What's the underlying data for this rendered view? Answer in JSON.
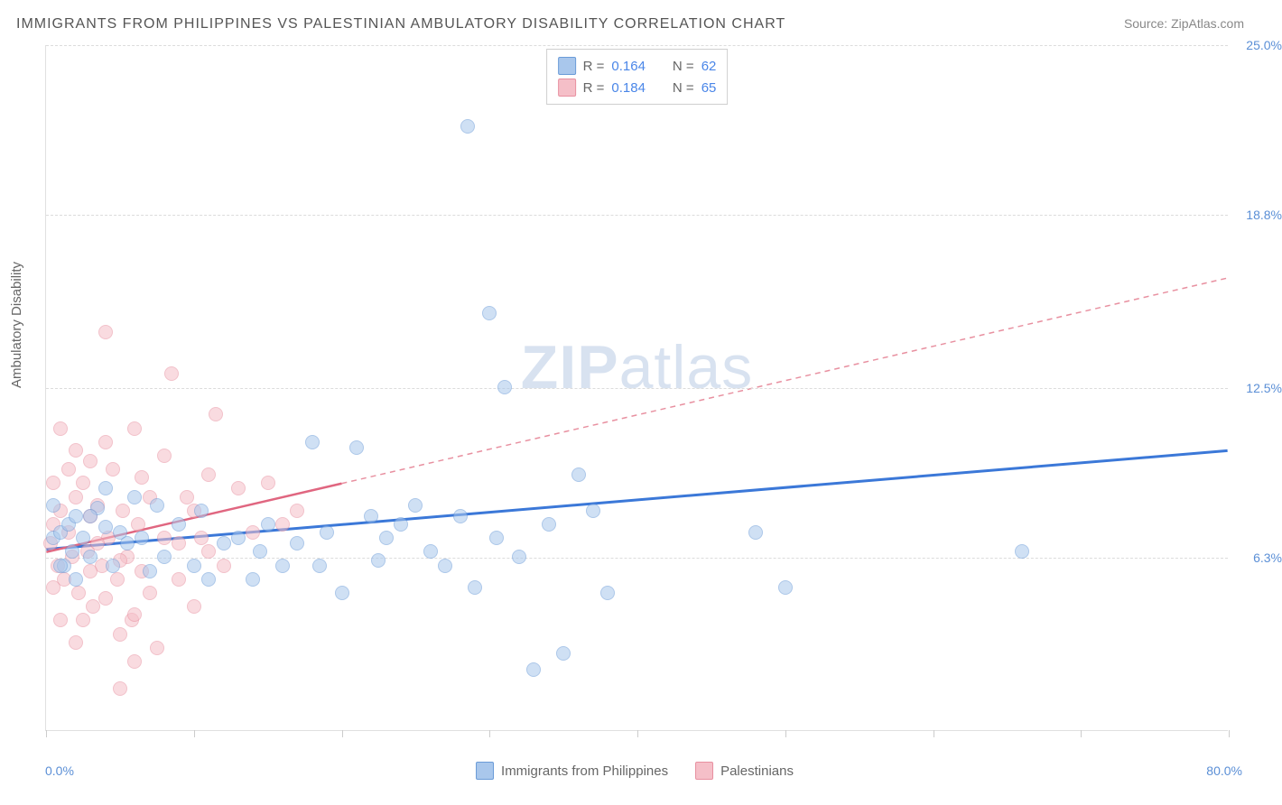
{
  "title": "IMMIGRANTS FROM PHILIPPINES VS PALESTINIAN AMBULATORY DISABILITY CORRELATION CHART",
  "source_prefix": "Source: ",
  "source_name": "ZipAtlas.com",
  "watermark_zip": "ZIP",
  "watermark_rest": "atlas",
  "y_axis_label": "Ambulatory Disability",
  "chart": {
    "type": "scatter",
    "xlim": [
      0,
      80
    ],
    "ylim": [
      0,
      25
    ],
    "x_min_label": "0.0%",
    "x_max_label": "80.0%",
    "y_ticks": [
      {
        "v": 6.3,
        "label": "6.3%"
      },
      {
        "v": 12.5,
        "label": "12.5%"
      },
      {
        "v": 18.8,
        "label": "18.8%"
      },
      {
        "v": 25.0,
        "label": "25.0%"
      }
    ],
    "x_tick_positions": [
      0,
      10,
      20,
      30,
      40,
      50,
      60,
      70,
      80
    ],
    "grid_color": "#dcdcdc",
    "background_color": "#ffffff",
    "axis_color": "#e0e0e0",
    "label_color": "#666666",
    "tick_label_color": "#5b8fd6",
    "marker_radius": 8,
    "marker_opacity": 0.55,
    "title_fontsize": 16,
    "label_fontsize": 15
  },
  "series": [
    {
      "key": "philippines",
      "label": "Immigrants from Philippines",
      "color_fill": "#a9c7ec",
      "color_stroke": "#6a9bd8",
      "r_label": "R = ",
      "r_value": "0.164",
      "n_label": "N = ",
      "n_value": "62",
      "trend": {
        "x1": 0,
        "y1": 6.6,
        "x2": 80,
        "y2": 10.2,
        "color": "#3b78d8",
        "width": 3,
        "dash": "none"
      },
      "trend_dashed": null,
      "points": [
        [
          0.5,
          7.0
        ],
        [
          1.0,
          7.2
        ],
        [
          1.2,
          6.0
        ],
        [
          1.5,
          7.5
        ],
        [
          1.8,
          6.5
        ],
        [
          2.0,
          7.8
        ],
        [
          2.5,
          7.0
        ],
        [
          3.0,
          6.3
        ],
        [
          3.5,
          8.1
        ],
        [
          4.0,
          7.4
        ],
        [
          4.5,
          6.0
        ],
        [
          5.0,
          7.2
        ],
        [
          5.5,
          6.8
        ],
        [
          6.0,
          8.5
        ],
        [
          6.5,
          7.0
        ],
        [
          7.0,
          5.8
        ],
        [
          7.5,
          8.2
        ],
        [
          8.0,
          6.3
        ],
        [
          9.0,
          7.5
        ],
        [
          10.0,
          6.0
        ],
        [
          10.5,
          8.0
        ],
        [
          11.0,
          5.5
        ],
        [
          12.0,
          6.8
        ],
        [
          13.0,
          7.0
        ],
        [
          14.0,
          5.5
        ],
        [
          14.5,
          6.5
        ],
        [
          15.0,
          7.5
        ],
        [
          16.0,
          6.0
        ],
        [
          17.0,
          6.8
        ],
        [
          18.0,
          10.5
        ],
        [
          18.5,
          6.0
        ],
        [
          19.0,
          7.2
        ],
        [
          20.0,
          5.0
        ],
        [
          21.0,
          10.3
        ],
        [
          22.0,
          7.8
        ],
        [
          22.5,
          6.2
        ],
        [
          23.0,
          7.0
        ],
        [
          24.0,
          7.5
        ],
        [
          25.0,
          8.2
        ],
        [
          26.0,
          6.5
        ],
        [
          27.0,
          6.0
        ],
        [
          28.0,
          7.8
        ],
        [
          28.5,
          22.0
        ],
        [
          29.0,
          5.2
        ],
        [
          30.0,
          15.2
        ],
        [
          30.5,
          7.0
        ],
        [
          31.0,
          12.5
        ],
        [
          32.0,
          6.3
        ],
        [
          33.0,
          2.2
        ],
        [
          34.0,
          7.5
        ],
        [
          35.0,
          2.8
        ],
        [
          36.0,
          9.3
        ],
        [
          37.0,
          8.0
        ],
        [
          38.0,
          5.0
        ],
        [
          0.5,
          8.2
        ],
        [
          2.0,
          5.5
        ],
        [
          4.0,
          8.8
        ],
        [
          50.0,
          5.2
        ],
        [
          66.0,
          6.5
        ],
        [
          48.0,
          7.2
        ],
        [
          1.0,
          6.0
        ],
        [
          3.0,
          7.8
        ]
      ]
    },
    {
      "key": "palestinians",
      "label": "Palestinians",
      "color_fill": "#f5bfc8",
      "color_stroke": "#e890a0",
      "r_label": "R = ",
      "r_value": "0.184",
      "n_label": "N = ",
      "n_value": "65",
      "trend": {
        "x1": 0,
        "y1": 6.5,
        "x2": 20,
        "y2": 9.0,
        "color": "#e06680",
        "width": 2.5,
        "dash": "none"
      },
      "trend_dashed": {
        "x1": 20,
        "y1": 9.0,
        "x2": 80,
        "y2": 16.5,
        "color": "#e890a0",
        "width": 1.5,
        "dash": "6 5"
      },
      "points": [
        [
          0.3,
          6.8
        ],
        [
          0.5,
          7.5
        ],
        [
          0.8,
          6.0
        ],
        [
          1.0,
          8.0
        ],
        [
          1.2,
          5.5
        ],
        [
          1.5,
          7.2
        ],
        [
          1.8,
          6.3
        ],
        [
          2.0,
          8.5
        ],
        [
          2.2,
          5.0
        ],
        [
          2.5,
          9.0
        ],
        [
          2.8,
          6.5
        ],
        [
          3.0,
          7.8
        ],
        [
          3.2,
          4.5
        ],
        [
          3.5,
          8.2
        ],
        [
          3.8,
          6.0
        ],
        [
          4.0,
          14.5
        ],
        [
          4.2,
          7.0
        ],
        [
          4.5,
          9.5
        ],
        [
          4.8,
          5.5
        ],
        [
          5.0,
          3.5
        ],
        [
          5.2,
          8.0
        ],
        [
          5.5,
          6.3
        ],
        [
          5.8,
          4.0
        ],
        [
          6.0,
          11.0
        ],
        [
          6.2,
          7.5
        ],
        [
          6.5,
          9.2
        ],
        [
          7.0,
          5.0
        ],
        [
          7.5,
          3.0
        ],
        [
          8.0,
          10.0
        ],
        [
          8.5,
          13.0
        ],
        [
          9.0,
          6.8
        ],
        [
          9.5,
          8.5
        ],
        [
          10.0,
          4.5
        ],
        [
          10.5,
          7.0
        ],
        [
          11.0,
          9.3
        ],
        [
          11.5,
          11.5
        ],
        [
          12.0,
          6.0
        ],
        [
          13.0,
          8.8
        ],
        [
          14.0,
          7.2
        ],
        [
          15.0,
          9.0
        ],
        [
          1.0,
          4.0
        ],
        [
          2.0,
          3.2
        ],
        [
          3.0,
          5.8
        ],
        [
          4.0,
          4.8
        ],
        [
          5.0,
          6.2
        ],
        [
          6.0,
          4.2
        ],
        [
          7.0,
          8.5
        ],
        [
          0.5,
          5.2
        ],
        [
          1.5,
          9.5
        ],
        [
          2.5,
          4.0
        ],
        [
          3.5,
          6.8
        ],
        [
          5.0,
          1.5
        ],
        [
          6.0,
          2.5
        ],
        [
          8.0,
          7.0
        ],
        [
          9.0,
          5.5
        ],
        [
          10.0,
          8.0
        ],
        [
          11.0,
          6.5
        ],
        [
          16.0,
          7.5
        ],
        [
          17.0,
          8.0
        ],
        [
          4.0,
          10.5
        ],
        [
          3.0,
          9.8
        ],
        [
          2.0,
          10.2
        ],
        [
          1.0,
          11.0
        ],
        [
          0.5,
          9.0
        ],
        [
          6.5,
          5.8
        ]
      ]
    }
  ]
}
